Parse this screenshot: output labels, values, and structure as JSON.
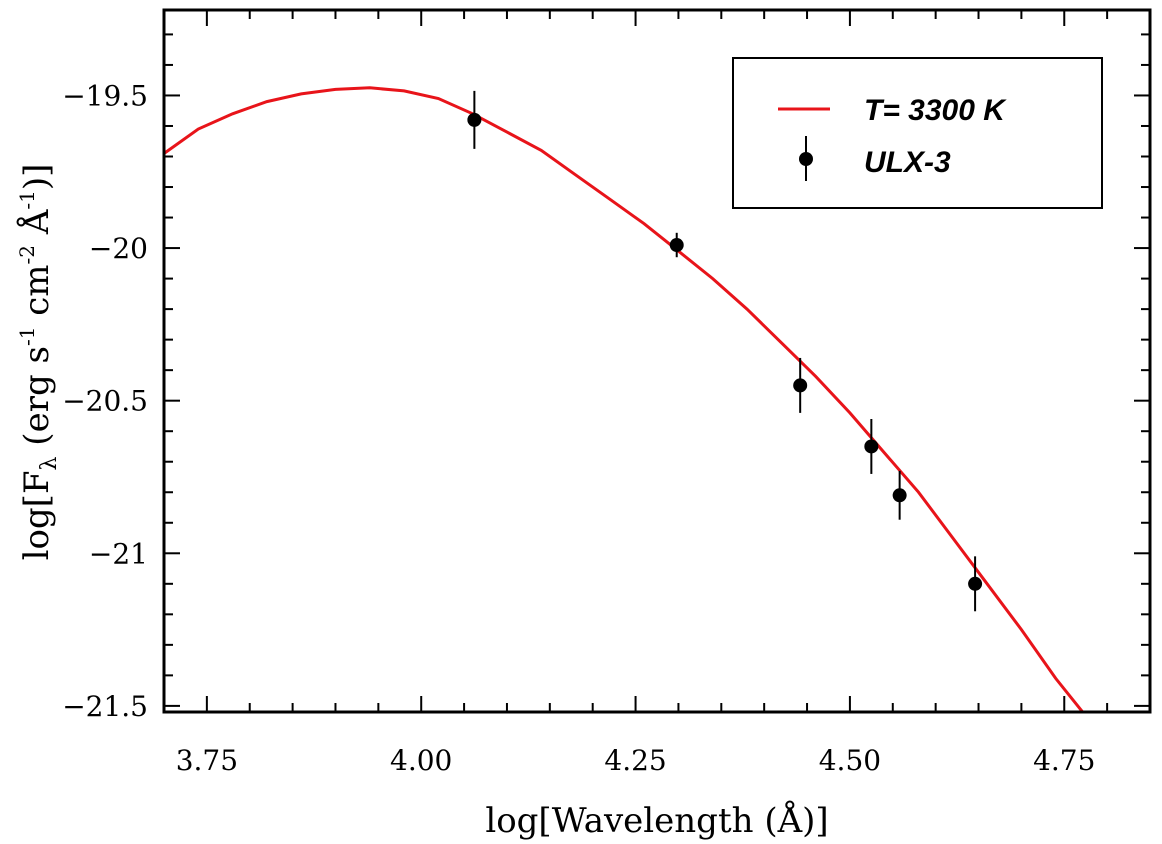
{
  "chart_data": {
    "type": "scatter",
    "xlabel": "log[Wavelength (Å)]",
    "ylabel": {
      "prefix": "log[F",
      "sub": "λ",
      "units_open": " (erg s",
      "s_exp": "-1",
      "cm": " cm",
      "cm_exp": "-2",
      "angstrom": " Å",
      "a_exp": "-1",
      "close": ")]"
    },
    "xlim": [
      3.7,
      4.85
    ],
    "ylim": [
      -21.52,
      -19.22
    ],
    "x_ticks": [
      "3.75",
      "4.00",
      "4.25",
      "4.50",
      "4.75"
    ],
    "x_tick_values": [
      3.75,
      4.0,
      4.25,
      4.5,
      4.75
    ],
    "y_ticks": [
      "−19.5",
      "−20",
      "−20.5",
      "−21",
      "−21.5"
    ],
    "y_tick_values": [
      -19.5,
      -20.0,
      -20.5,
      -21.0,
      -21.5
    ],
    "grid": false,
    "legend": {
      "position": "top-right",
      "entries": [
        {
          "label": "T= 3300 K",
          "kind": "line",
          "color": "#e8141a"
        },
        {
          "label": "ULX-3",
          "kind": "errorbar-point",
          "color": "#000000"
        }
      ]
    },
    "series": [
      {
        "name": "T= 3300 K",
        "kind": "line",
        "color": "#e8141a",
        "points": [
          [
            3.7,
            -19.69
          ],
          [
            3.74,
            -19.61
          ],
          [
            3.78,
            -19.56
          ],
          [
            3.82,
            -19.52
          ],
          [
            3.86,
            -19.495
          ],
          [
            3.9,
            -19.48
          ],
          [
            3.94,
            -19.475
          ],
          [
            3.98,
            -19.485
          ],
          [
            4.02,
            -19.51
          ],
          [
            4.06,
            -19.56
          ],
          [
            4.1,
            -19.62
          ],
          [
            4.14,
            -19.68
          ],
          [
            4.18,
            -19.76
          ],
          [
            4.22,
            -19.84
          ],
          [
            4.26,
            -19.92
          ],
          [
            4.3,
            -20.01
          ],
          [
            4.34,
            -20.1
          ],
          [
            4.38,
            -20.2
          ],
          [
            4.42,
            -20.31
          ],
          [
            4.46,
            -20.42
          ],
          [
            4.5,
            -20.54
          ],
          [
            4.54,
            -20.67
          ],
          [
            4.58,
            -20.8
          ],
          [
            4.62,
            -20.95
          ],
          [
            4.66,
            -21.1
          ],
          [
            4.7,
            -21.25
          ],
          [
            4.74,
            -21.41
          ],
          [
            4.78,
            -21.55
          ]
        ]
      },
      {
        "name": "ULX-3",
        "kind": "errorbar",
        "color": "#000000",
        "points": [
          {
            "x": 4.062,
            "y": -19.58,
            "err": 0.095
          },
          {
            "x": 4.298,
            "y": -19.99,
            "err": 0.04
          },
          {
            "x": 4.442,
            "y": -20.45,
            "err": 0.09
          },
          {
            "x": 4.525,
            "y": -20.65,
            "err": 0.09
          },
          {
            "x": 4.558,
            "y": -20.81,
            "err": 0.08
          },
          {
            "x": 4.646,
            "y": -21.1,
            "err": 0.09
          }
        ]
      }
    ]
  }
}
